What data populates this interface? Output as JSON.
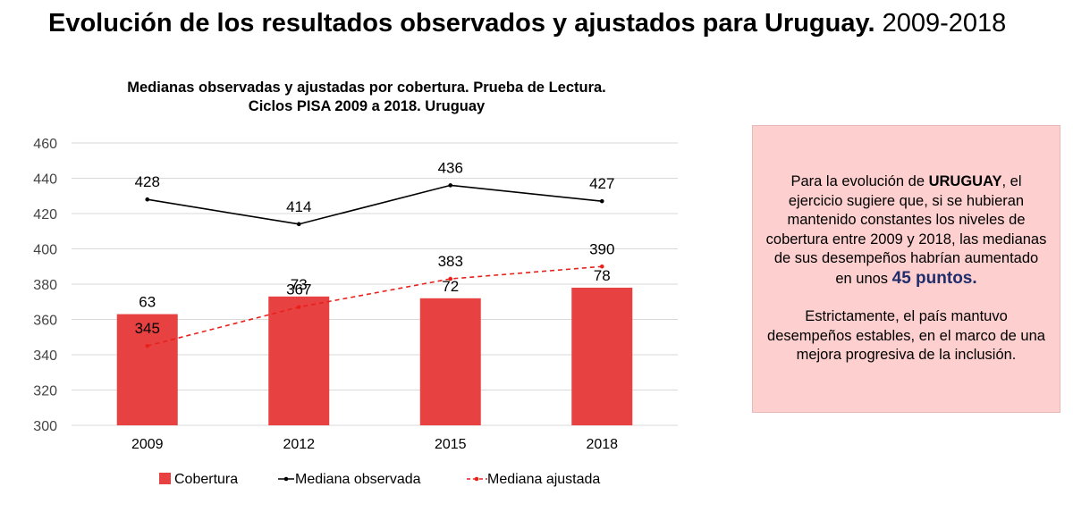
{
  "header": {
    "title": "Evolución de los resultados observados y ajustados para Uruguay.",
    "years": "2009-2018"
  },
  "colors": {
    "bar": "#e84142",
    "observed_line": "#000000",
    "adjusted_line": "#e8211b",
    "note_bg": "#fdcfcf",
    "highlight_text": "#1f2d6b"
  },
  "chart_data": {
    "type": "bar",
    "title_line1": "Medianas observadas y ajustadas por cobertura. Prueba de Lectura.",
    "title_line2": "Ciclos PISA 2009 a 2018. Uruguay",
    "categories": [
      "2009",
      "2012",
      "2015",
      "2018"
    ],
    "ylim": [
      300,
      460
    ],
    "yticks": [
      "300",
      "320",
      "340",
      "360",
      "380",
      "400",
      "420",
      "440",
      "460"
    ],
    "grid": true,
    "legend_position": "bottom",
    "series": [
      {
        "name": "Cobertura",
        "type": "bar",
        "values": [
          63,
          73,
          72,
          78
        ],
        "labels": [
          "63",
          "73",
          "72",
          "78"
        ],
        "bar_base": 300
      },
      {
        "name": "Mediana observada",
        "type": "line",
        "style": "solid",
        "values": [
          428,
          414,
          436,
          427
        ],
        "labels": [
          "428",
          "414",
          "436",
          "427"
        ]
      },
      {
        "name": "Mediana ajustada",
        "type": "line",
        "style": "dashed",
        "values": [
          345,
          367,
          383,
          390
        ],
        "labels": [
          "345",
          "367",
          "383",
          "390"
        ]
      }
    ]
  },
  "note": {
    "p1_pre": "Para la evolución de ",
    "p1_country": "URUGUAY",
    "p1_mid": ", el ejercicio sugiere que, si se hubieran mantenido constantes los niveles de cobertura entre 2009 y 2018, las medianas de sus desempeños habrían aumentado en unos ",
    "p1_points": "45 puntos.",
    "p2": "Estrictamente, el país mantuvo desempeños estables, en el marco de una mejora progresiva de la inclusión."
  }
}
